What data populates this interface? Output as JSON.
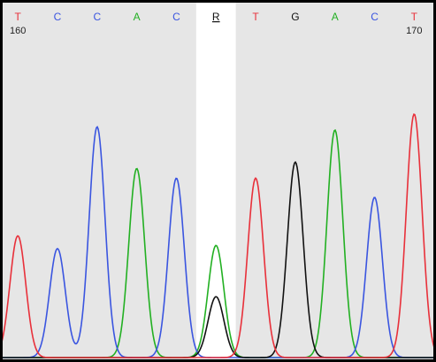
{
  "chart_data": {
    "type": "line",
    "title": "",
    "xlabel": "",
    "ylabel": "",
    "grid": false,
    "legend": "none",
    "xlim": [
      159.55,
      170.55
    ],
    "ylim": [
      0,
      1.0
    ],
    "position_labels": [
      {
        "position": 160,
        "text": "160"
      },
      {
        "position": 170,
        "text": "170"
      }
    ],
    "base_calls": [
      {
        "position": 160,
        "base": "T",
        "highlight": false
      },
      {
        "position": 161,
        "base": "C",
        "highlight": false
      },
      {
        "position": 162,
        "base": "C",
        "highlight": false
      },
      {
        "position": 163,
        "base": "A",
        "highlight": false
      },
      {
        "position": 164,
        "base": "C",
        "highlight": false
      },
      {
        "position": 165,
        "base": "R",
        "highlight": true
      },
      {
        "position": 166,
        "base": "T",
        "highlight": false
      },
      {
        "position": 167,
        "base": "G",
        "highlight": false
      },
      {
        "position": 168,
        "base": "A",
        "highlight": false
      },
      {
        "position": 169,
        "base": "C",
        "highlight": false
      },
      {
        "position": 170,
        "base": "T",
        "highlight": false
      }
    ],
    "base_colors": {
      "A": "#22b022",
      "C": "#3a55e0",
      "G": "#111111",
      "T": "#e8303a",
      "R": "#111111"
    },
    "series": [
      {
        "base": "A",
        "color": "#22b022",
        "peaks": [
          {
            "position": 163,
            "height": 0.59
          },
          {
            "position": 165,
            "height": 0.35
          },
          {
            "position": 168,
            "height": 0.71
          }
        ]
      },
      {
        "base": "C",
        "color": "#3a55e0",
        "peaks": [
          {
            "position": 161,
            "height": 0.34
          },
          {
            "position": 162,
            "height": 0.72
          },
          {
            "position": 164,
            "height": 0.56
          },
          {
            "position": 169,
            "height": 0.5
          }
        ]
      },
      {
        "base": "G",
        "color": "#111111",
        "peaks": [
          {
            "position": 165,
            "height": 0.19
          },
          {
            "position": 167,
            "height": 0.61
          }
        ]
      },
      {
        "base": "T",
        "color": "#e8303a",
        "peaks": [
          {
            "position": 160,
            "height": 0.38
          },
          {
            "position": 166,
            "height": 0.56
          },
          {
            "position": 170,
            "height": 0.76
          }
        ]
      }
    ],
    "background": {
      "panel_color": "#e6e6e6",
      "highlight_color": "#ffffff",
      "highlight_position": 165
    }
  }
}
